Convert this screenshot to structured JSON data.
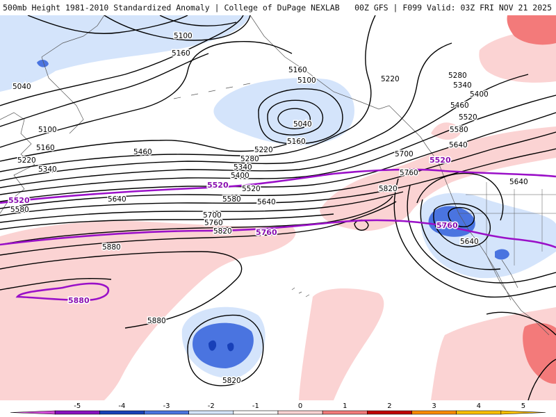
{
  "header": {
    "title_left": "500mb Height 1981-2010 Standardized Anomaly | College of DuPage NEXLAB",
    "title_right": "00Z GFS | F099 Valid: 03Z FRI NOV 21 2025"
  },
  "colors": {
    "neg5": "#d04ad6",
    "neg4": "#8a10c0",
    "neg3": "#1840b8",
    "neg2": "#4a74e0",
    "neg1": "#d4e4fb",
    "zero": "#ffffff",
    "pos1": "#fbd3d3",
    "pos2": "#f37a7a",
    "pos3": "#c00000",
    "pos4": "#ff8c00",
    "pos5": "#ffc000",
    "reference_line": "#9a10c8",
    "contour": "#000000",
    "coast": "#555555"
  },
  "contour_labels": [
    {
      "text": "5100"
    },
    {
      "text": "5160"
    },
    {
      "text": "5040"
    },
    {
      "text": "5100"
    },
    {
      "text": "5160"
    },
    {
      "text": "5220"
    },
    {
      "text": "5340"
    },
    {
      "text": "5580"
    },
    {
      "text": "5160"
    },
    {
      "text": "5100"
    },
    {
      "text": "5040"
    },
    {
      "text": "5160"
    },
    {
      "text": "5220"
    },
    {
      "text": "5280"
    },
    {
      "text": "5460"
    },
    {
      "text": "5340"
    },
    {
      "text": "5400"
    },
    {
      "text": "5520"
    },
    {
      "text": "5580"
    },
    {
      "text": "5640"
    },
    {
      "text": "5640"
    },
    {
      "text": "5700"
    },
    {
      "text": "5760"
    },
    {
      "text": "5820"
    },
    {
      "text": "5880"
    },
    {
      "text": "5880"
    },
    {
      "text": "5820"
    },
    {
      "text": "5760"
    },
    {
      "text": "5700"
    },
    {
      "text": "5820"
    },
    {
      "text": "5640"
    },
    {
      "text": "5640"
    },
    {
      "text": "5220"
    },
    {
      "text": "5280"
    },
    {
      "text": "5340"
    },
    {
      "text": "5400"
    },
    {
      "text": "5460"
    },
    {
      "text": "5520"
    },
    {
      "text": "5580"
    },
    {
      "text": "5640"
    }
  ],
  "reference_labels": [
    {
      "text": "5520"
    },
    {
      "text": "5520"
    },
    {
      "text": "5520"
    },
    {
      "text": "5760"
    },
    {
      "text": "5760"
    },
    {
      "text": "5880"
    }
  ],
  "colorbar": {
    "ticks": [
      "-5",
      "-4",
      "-3",
      "-2",
      "-1",
      "0",
      "1",
      "2",
      "3",
      "4",
      "5"
    ]
  }
}
